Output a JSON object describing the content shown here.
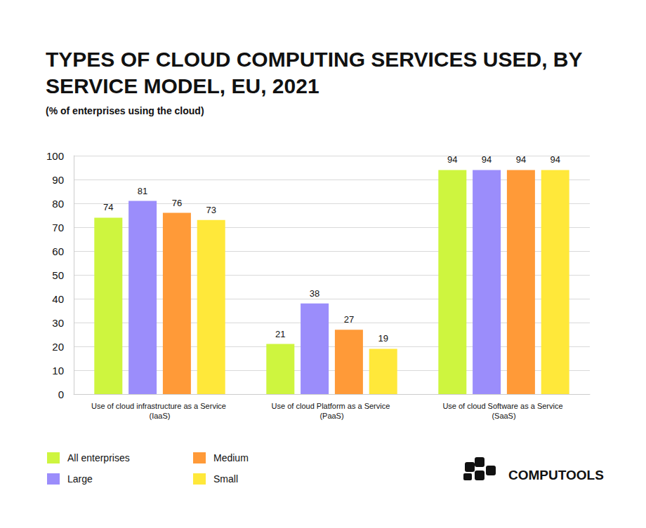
{
  "chart_data": {
    "type": "bar",
    "title": "TYPES OF CLOUD COMPUTING SERVICES USED, BY SERVICE MODEL, EU, 2021",
    "subtitle": "(% of enterprises using the cloud)",
    "brand": "COMPUTOOLS",
    "categories": [
      "Use of cloud infrastructure as a Service (IaaS)",
      "Use of cloud Platform as a Service (PaaS)",
      "Use of cloud Software as a Service (SaaS)"
    ],
    "series": [
      {
        "name": "All enterprises",
        "color": "#cef53f",
        "values": [
          74,
          21,
          94
        ]
      },
      {
        "name": "Large",
        "color": "#9b8dfb",
        "values": [
          81,
          38,
          94
        ]
      },
      {
        "name": "Medium",
        "color": "#ff9a38",
        "values": [
          76,
          27,
          94
        ]
      },
      {
        "name": "Small",
        "color": "#ffe83a",
        "values": [
          73,
          19,
          94
        ]
      }
    ],
    "ylim": [
      0,
      100
    ],
    "yticks": [
      0,
      10,
      20,
      30,
      40,
      50,
      60,
      70,
      80,
      90,
      100
    ],
    "grid": true,
    "data_labels": true,
    "legend": "bottom-left"
  }
}
